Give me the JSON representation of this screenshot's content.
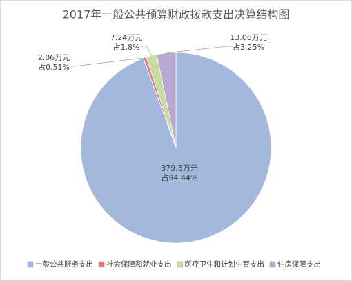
{
  "chart_data": {
    "type": "pie",
    "title": "2017年一般公共预算财政拨款支出决算结构图",
    "categories": [
      "一般公共服务支出",
      "社会保障和就业支出",
      "医疗卫生和计划生育支出",
      "住房保障支出"
    ],
    "values": [
      379.8,
      2.06,
      7.24,
      13.06
    ],
    "value_labels": [
      "379.8万元",
      "2.06万元",
      "7.24万元",
      "13.06万元"
    ],
    "percent_labels": [
      "占94.44%",
      "占0.51%",
      "占1.8%",
      "占3.25%"
    ],
    "colors": [
      "#a3b8dc",
      "#e07c7a",
      "#c5dca3",
      "#b8a8d2"
    ],
    "legend": "bottom"
  }
}
